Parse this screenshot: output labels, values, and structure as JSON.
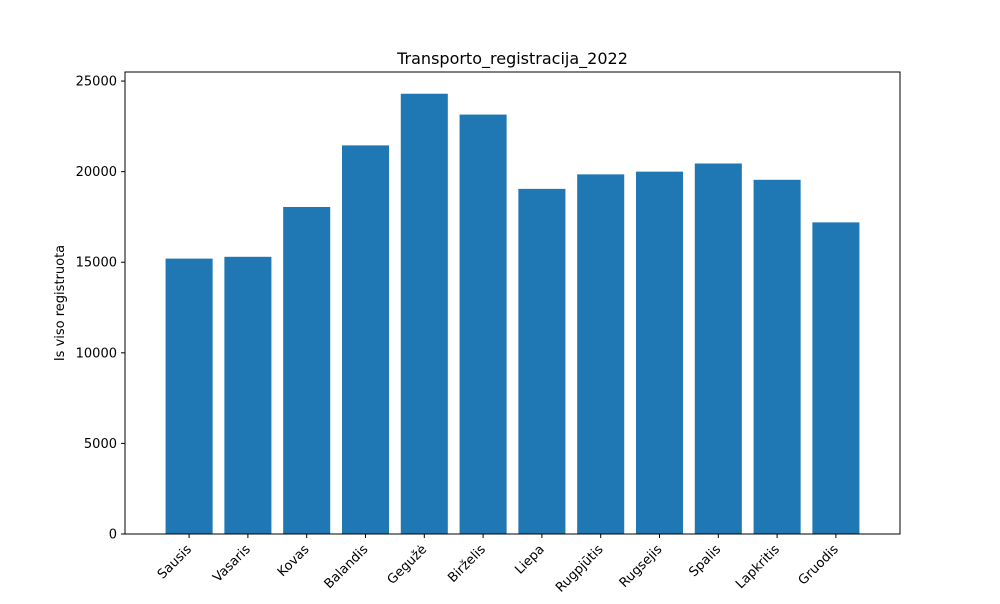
{
  "chart_data": {
    "type": "bar",
    "title": "Transporto_registracija_2022",
    "xlabel": "",
    "ylabel": "Is viso registruota",
    "categories": [
      "Sausis",
      "Vasaris",
      "Kovas",
      "Balandis",
      "Gegužė",
      "Birželis",
      "Liepa",
      "Rugpjūtis",
      "Rugsejis",
      "Spalis",
      "Lapkritis",
      "Gruodis"
    ],
    "values": [
      15200,
      15300,
      18050,
      21450,
      24300,
      23150,
      19050,
      19850,
      20000,
      20450,
      19550,
      17200
    ],
    "ylim": [
      0,
      25500
    ],
    "yticks": [
      0,
      5000,
      10000,
      15000,
      20000,
      25000
    ],
    "grid": false,
    "bar_color": "#1f77b4"
  }
}
